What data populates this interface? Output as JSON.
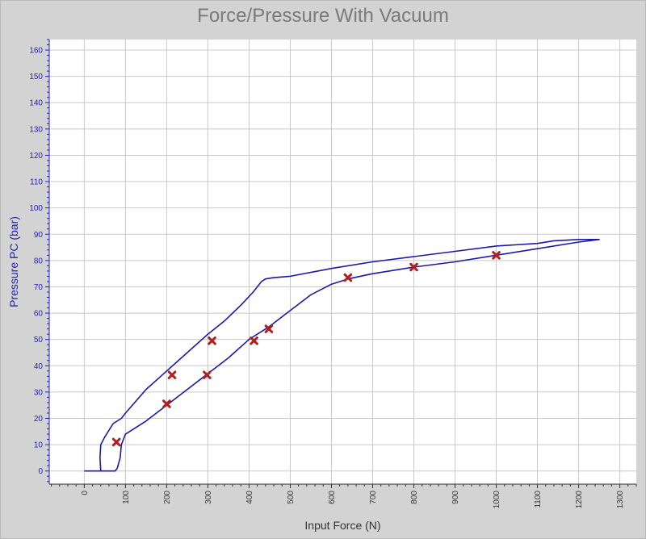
{
  "chart_data": {
    "type": "line",
    "title": "Force/Pressure With Vacuum",
    "xlabel": "Input Force (N)",
    "ylabel": "Pressure PC (bar)",
    "xlim": [
      -85,
      1340
    ],
    "ylim": [
      -5,
      164
    ],
    "x_ticks": [
      0,
      100,
      200,
      300,
      400,
      500,
      600,
      700,
      800,
      900,
      1000,
      1100,
      1200,
      1300
    ],
    "y_ticks": [
      0,
      10,
      20,
      30,
      40,
      50,
      60,
      70,
      80,
      90,
      100,
      110,
      120,
      130,
      140,
      150,
      160
    ],
    "grid": true,
    "series": [
      {
        "kind": "line",
        "color": "#1a1aa6",
        "points": [
          [
            0,
            0
          ],
          [
            75,
            0
          ],
          [
            80,
            1
          ],
          [
            87,
            5
          ],
          [
            90,
            10
          ],
          [
            95,
            12
          ],
          [
            100,
            14
          ],
          [
            150,
            19
          ],
          [
            200,
            25
          ],
          [
            250,
            31
          ],
          [
            300,
            37
          ],
          [
            350,
            43
          ],
          [
            400,
            50
          ],
          [
            450,
            55
          ],
          [
            500,
            61
          ],
          [
            550,
            67
          ],
          [
            600,
            71
          ],
          [
            640,
            73
          ],
          [
            700,
            75
          ],
          [
            800,
            77.5
          ],
          [
            900,
            79.5
          ],
          [
            1000,
            82
          ],
          [
            1100,
            84.5
          ],
          [
            1200,
            87
          ],
          [
            1250,
            88
          ],
          [
            1200,
            88
          ],
          [
            1140,
            87.5
          ],
          [
            1100,
            86.5
          ],
          [
            1000,
            85.5
          ],
          [
            900,
            83.5
          ],
          [
            800,
            81.5
          ],
          [
            700,
            79.5
          ],
          [
            600,
            77
          ],
          [
            500,
            74
          ],
          [
            460,
            73.5
          ],
          [
            440,
            73
          ],
          [
            430,
            72
          ],
          [
            410,
            68
          ],
          [
            380,
            63
          ],
          [
            340,
            57
          ],
          [
            300,
            52
          ],
          [
            250,
            45
          ],
          [
            200,
            38
          ],
          [
            150,
            31
          ],
          [
            100,
            22
          ],
          [
            90,
            20
          ],
          [
            70,
            18
          ],
          [
            50,
            13
          ],
          [
            40,
            10
          ],
          [
            38,
            5
          ],
          [
            40,
            0
          ],
          [
            45,
            0
          ]
        ]
      },
      {
        "kind": "markers",
        "color": "#b02020",
        "marker": "x",
        "points": [
          [
            78,
            11
          ],
          [
            200,
            25.5
          ],
          [
            213,
            36.5
          ],
          [
            298,
            36.5
          ],
          [
            310,
            49.5
          ],
          [
            412,
            49.5
          ],
          [
            448,
            54
          ],
          [
            640,
            73.5
          ],
          [
            800,
            77.5
          ],
          [
            1000,
            82
          ]
        ]
      }
    ]
  }
}
